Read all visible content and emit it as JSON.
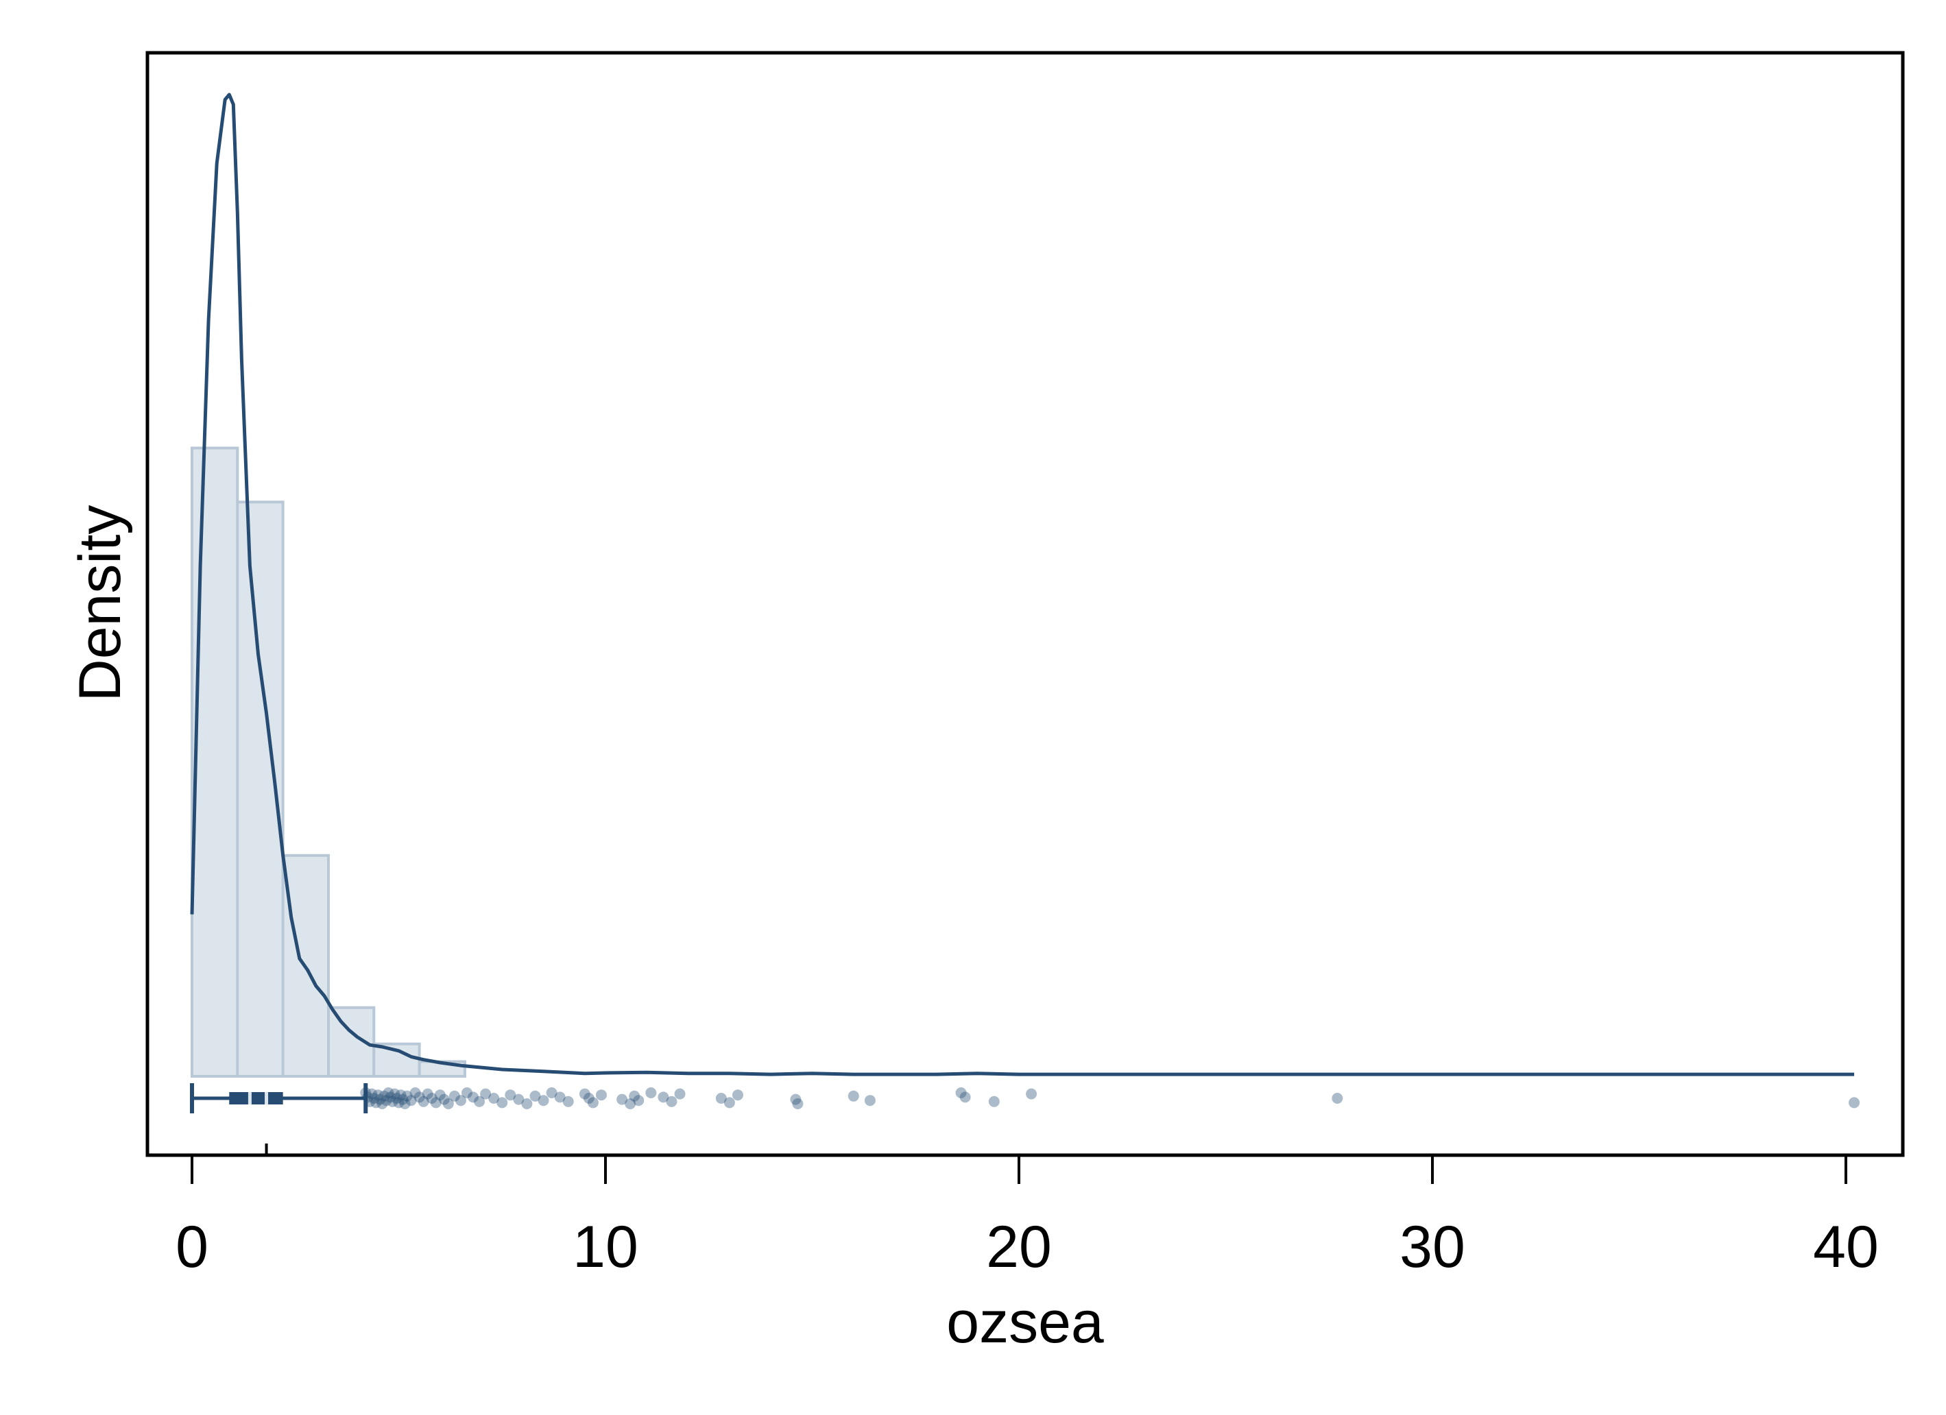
{
  "chart_data": {
    "type": "histogram",
    "title": "",
    "xlabel": "ozsea",
    "ylabel": "Density",
    "xlim": [
      -1.0,
      41.2
    ],
    "ylim": [
      0,
      1
    ],
    "y_ticks_shown": false,
    "x_ticks": [
      0,
      10,
      20,
      30,
      40
    ],
    "x_tick_labels": [
      "0",
      "10",
      "20",
      "30",
      "40"
    ],
    "grid": false,
    "legend": "none",
    "histogram": {
      "bin_edges": [
        0,
        1.1,
        2.2,
        3.3,
        4.4,
        5.5,
        6.6
      ],
      "heights": [
        0.64,
        0.585,
        0.225,
        0.07,
        0.033,
        0.015
      ]
    },
    "density_curve": {
      "x": [
        0,
        0.2,
        0.4,
        0.6,
        0.8,
        0.9,
        1.0,
        1.1,
        1.2,
        1.4,
        1.6,
        1.8,
        2.0,
        2.2,
        2.4,
        2.6,
        2.8,
        3.0,
        3.2,
        3.4,
        3.6,
        3.8,
        4.0,
        4.3,
        4.6,
        5.0,
        5.3,
        5.6,
        6.0,
        6.5,
        7.0,
        7.5,
        8.0,
        8.5,
        9.0,
        9.5,
        10.0,
        11.0,
        12.0,
        13.0,
        14.0,
        15.0,
        16.0,
        18.0,
        19.0,
        20.0,
        21.0,
        25.0,
        27.5,
        28.5,
        32.0,
        36.0,
        40.2
      ],
      "y": [
        0.165,
        0.52,
        0.77,
        0.93,
        0.995,
        1.0,
        0.99,
        0.88,
        0.73,
        0.52,
        0.43,
        0.37,
        0.3,
        0.225,
        0.162,
        0.12,
        0.108,
        0.092,
        0.082,
        0.068,
        0.056,
        0.047,
        0.04,
        0.032,
        0.03,
        0.026,
        0.02,
        0.017,
        0.014,
        0.011,
        0.009,
        0.007,
        0.006,
        0.005,
        0.004,
        0.003,
        0.0035,
        0.004,
        0.003,
        0.003,
        0.002,
        0.003,
        0.002,
        0.002,
        0.003,
        0.002,
        0.002,
        0.002,
        0.002,
        0.002,
        0.002,
        0.002,
        0.002
      ]
    },
    "box": {
      "min": 0.0,
      "q1": 0.9,
      "median": 1.4,
      "mean": 1.8,
      "q3": 2.2,
      "upper_whisker": 4.2
    },
    "outliers": [
      4.2,
      4.25,
      4.3,
      4.35,
      4.4,
      4.45,
      4.5,
      4.55,
      4.6,
      4.65,
      4.7,
      4.75,
      4.8,
      4.85,
      4.9,
      4.95,
      5.0,
      5.05,
      5.1,
      5.15,
      5.2,
      5.3,
      5.4,
      5.5,
      5.6,
      5.7,
      5.8,
      5.9,
      6.0,
      6.1,
      6.2,
      6.35,
      6.5,
      6.65,
      6.8,
      6.95,
      7.1,
      7.3,
      7.5,
      7.7,
      7.9,
      8.1,
      8.3,
      8.5,
      8.7,
      8.9,
      9.1,
      9.5,
      9.6,
      9.7,
      9.9,
      10.4,
      10.6,
      10.7,
      10.8,
      11.1,
      11.4,
      11.6,
      11.8,
      12.8,
      13.0,
      13.2,
      14.6,
      14.65,
      16.0,
      16.4,
      18.6,
      18.7,
      19.4,
      20.3,
      27.7,
      40.2
    ]
  }
}
